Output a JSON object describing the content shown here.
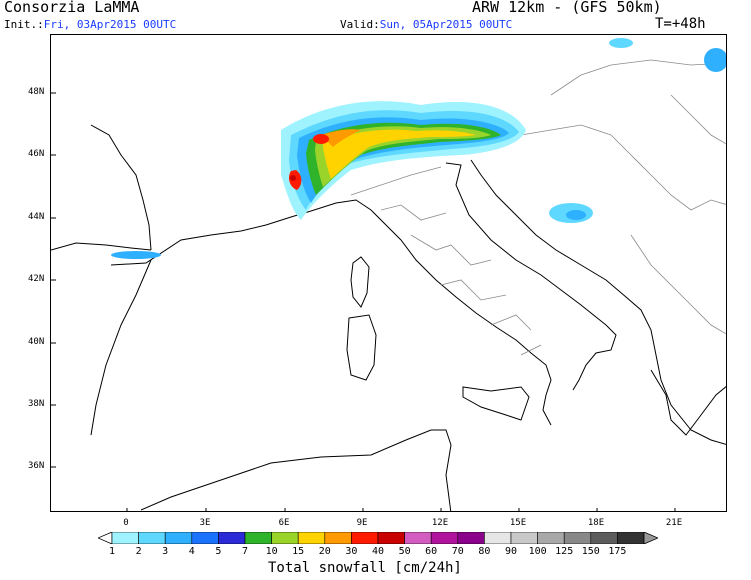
{
  "header": {
    "org": "Consorzia LaMMA",
    "model": "ARW 12km - (GFS 50km)",
    "init_label": "Init.:",
    "init_value": "Fri, 03Apr2015 00UTC",
    "valid_label": "Valid:",
    "valid_value": "Sun, 05Apr2015 00UTC",
    "step": "T=+48h"
  },
  "map": {
    "lat_labels": [
      "48N",
      "46N",
      "44N",
      "42N",
      "40N",
      "38N",
      "36N"
    ],
    "lon_labels": [
      "0",
      "3E",
      "6E",
      "9E",
      "12E",
      "15E",
      "18E",
      "21E"
    ]
  },
  "legend": {
    "title": "Total snowfall [cm/24h]",
    "values": [
      "1",
      "2",
      "3",
      "4",
      "5",
      "7",
      "10",
      "15",
      "20",
      "30",
      "40",
      "50",
      "60",
      "70",
      "80",
      "90",
      "100",
      "125",
      "150",
      "175"
    ],
    "colors": [
      "#9ff3ff",
      "#5ed8ff",
      "#2fb0ff",
      "#1a72ff",
      "#2a2ad6",
      "#2fb32a",
      "#9ad32a",
      "#ffd300",
      "#ff9a00",
      "#ff1a00",
      "#c80000",
      "#d35cc0",
      "#b0149c",
      "#8b008b",
      "#e6e6e6",
      "#c8c8c8",
      "#a8a8a8",
      "#888888",
      "#5c5c5c",
      "#333333"
    ]
  }
}
